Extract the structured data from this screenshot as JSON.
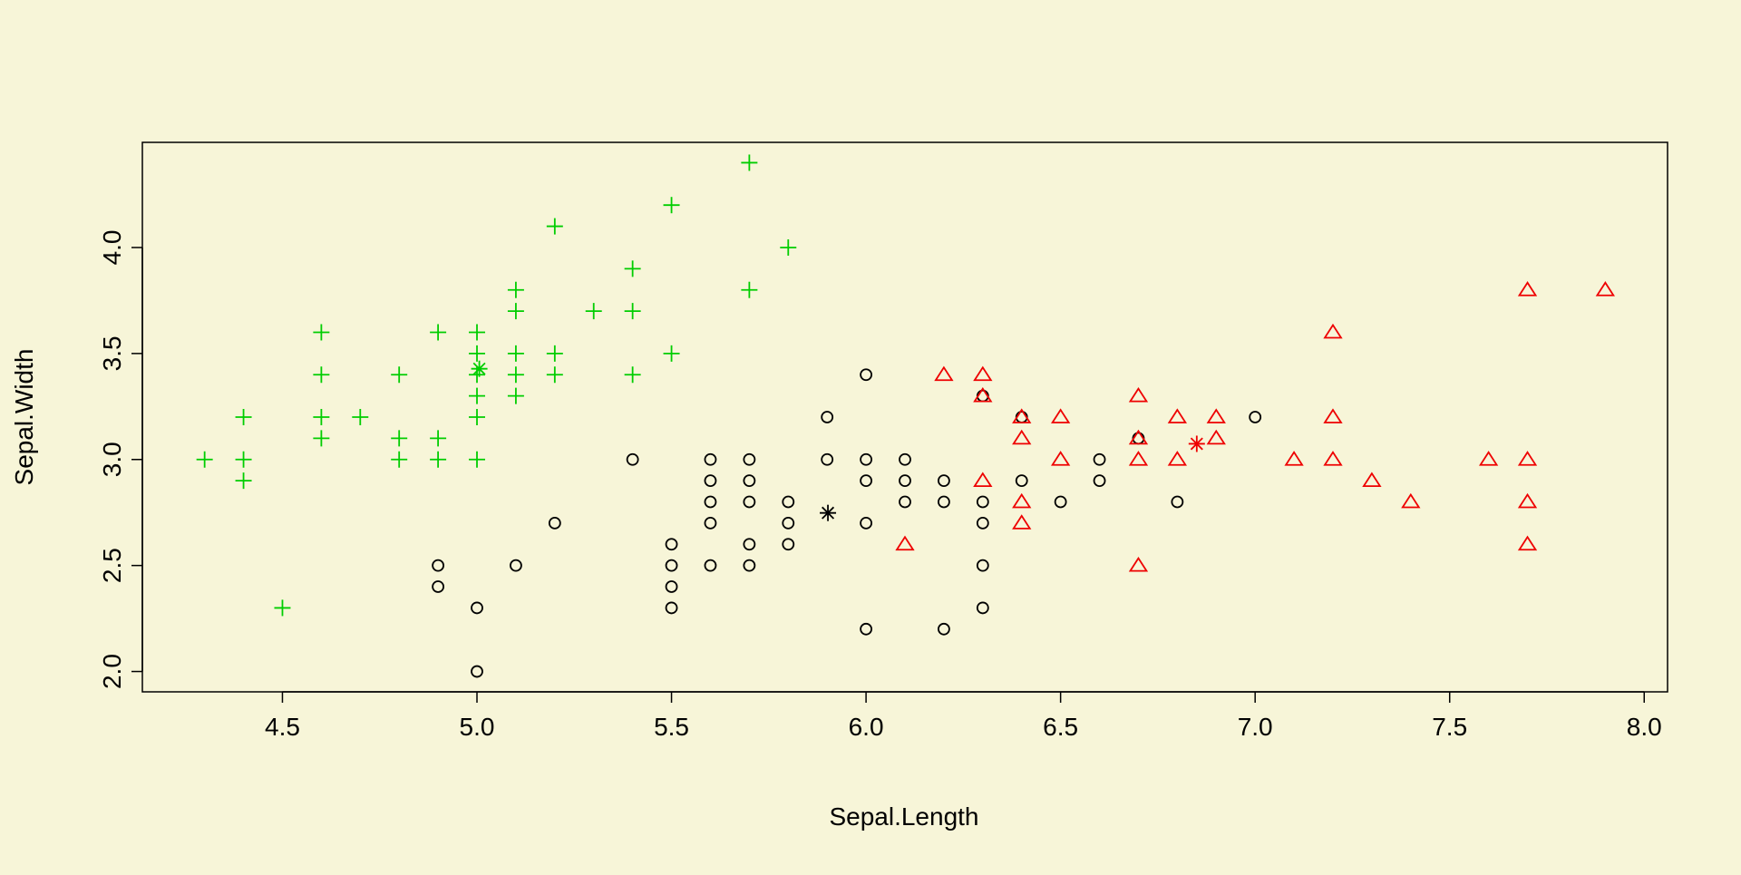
{
  "colors": {
    "background": "#f7f5d8",
    "axis": "#000000"
  },
  "chart_data": {
    "type": "scatter",
    "title": "",
    "xlabel": "Sepal.Length",
    "ylabel": "Sepal.Width",
    "xlim": [
      4.14,
      8.06
    ],
    "ylim": [
      1.904,
      4.496
    ],
    "x_ticks": [
      4.5,
      5.0,
      5.5,
      6.0,
      6.5,
      7.0,
      7.5,
      8.0
    ],
    "x_tick_labels": [
      "4.5",
      "5.0",
      "5.5",
      "6.0",
      "6.5",
      "7.0",
      "7.5",
      "8.0"
    ],
    "y_ticks": [
      2.0,
      2.5,
      3.0,
      3.5,
      4.0
    ],
    "y_tick_labels": [
      "2.0",
      "2.5",
      "3.0",
      "3.5",
      "4.0"
    ],
    "grid": false,
    "legend": "none",
    "series": [
      {
        "marker": "plus",
        "color": "#00cd00",
        "points": [
          [
            4.3,
            3.0
          ],
          [
            4.4,
            2.9
          ],
          [
            4.4,
            3.0
          ],
          [
            4.4,
            3.2
          ],
          [
            4.5,
            2.3
          ],
          [
            4.6,
            3.1
          ],
          [
            4.6,
            3.2
          ],
          [
            4.6,
            3.4
          ],
          [
            4.6,
            3.6
          ],
          [
            4.7,
            3.2
          ],
          [
            4.8,
            3.0
          ],
          [
            4.8,
            3.1
          ],
          [
            4.8,
            3.4
          ],
          [
            4.9,
            3.0
          ],
          [
            4.9,
            3.1
          ],
          [
            4.9,
            3.6
          ],
          [
            5.0,
            3.0
          ],
          [
            5.0,
            3.2
          ],
          [
            5.0,
            3.3
          ],
          [
            5.0,
            3.4
          ],
          [
            5.0,
            3.5
          ],
          [
            5.0,
            3.6
          ],
          [
            5.1,
            3.3
          ],
          [
            5.1,
            3.4
          ],
          [
            5.1,
            3.5
          ],
          [
            5.1,
            3.7
          ],
          [
            5.1,
            3.8
          ],
          [
            5.2,
            3.4
          ],
          [
            5.2,
            3.5
          ],
          [
            5.2,
            4.1
          ],
          [
            5.3,
            3.7
          ],
          [
            5.4,
            3.4
          ],
          [
            5.4,
            3.7
          ],
          [
            5.4,
            3.9
          ],
          [
            5.5,
            3.5
          ],
          [
            5.5,
            4.2
          ],
          [
            5.7,
            3.8
          ],
          [
            5.7,
            4.4
          ],
          [
            5.8,
            4.0
          ]
        ]
      },
      {
        "marker": "circle",
        "color": "#000000",
        "points": [
          [
            4.9,
            2.4
          ],
          [
            4.9,
            2.5
          ],
          [
            5.0,
            2.0
          ],
          [
            5.0,
            2.3
          ],
          [
            5.1,
            2.5
          ],
          [
            5.2,
            2.7
          ],
          [
            5.4,
            3.0
          ],
          [
            5.5,
            2.3
          ],
          [
            5.5,
            2.4
          ],
          [
            5.5,
            2.5
          ],
          [
            5.5,
            2.6
          ],
          [
            5.6,
            2.5
          ],
          [
            5.6,
            2.7
          ],
          [
            5.6,
            2.8
          ],
          [
            5.6,
            2.9
          ],
          [
            5.6,
            3.0
          ],
          [
            5.7,
            2.5
          ],
          [
            5.7,
            2.6
          ],
          [
            5.7,
            2.8
          ],
          [
            5.7,
            2.9
          ],
          [
            5.7,
            3.0
          ],
          [
            5.8,
            2.6
          ],
          [
            5.8,
            2.7
          ],
          [
            5.8,
            2.8
          ],
          [
            5.9,
            3.0
          ],
          [
            5.9,
            3.2
          ],
          [
            6.0,
            2.2
          ],
          [
            6.0,
            2.7
          ],
          [
            6.0,
            2.9
          ],
          [
            6.0,
            3.0
          ],
          [
            6.0,
            3.4
          ],
          [
            6.1,
            2.8
          ],
          [
            6.1,
            2.9
          ],
          [
            6.1,
            3.0
          ],
          [
            6.2,
            2.2
          ],
          [
            6.2,
            2.8
          ],
          [
            6.2,
            2.9
          ],
          [
            6.3,
            2.3
          ],
          [
            6.3,
            2.5
          ],
          [
            6.3,
            2.7
          ],
          [
            6.3,
            2.8
          ],
          [
            6.3,
            3.3
          ],
          [
            6.4,
            2.9
          ],
          [
            6.4,
            3.2
          ],
          [
            6.5,
            2.8
          ],
          [
            6.6,
            2.9
          ],
          [
            6.6,
            3.0
          ],
          [
            6.7,
            3.1
          ],
          [
            6.8,
            2.8
          ],
          [
            7.0,
            3.2
          ]
        ]
      },
      {
        "marker": "triangle",
        "color": "#ee0000",
        "points": [
          [
            6.1,
            2.6
          ],
          [
            6.2,
            3.4
          ],
          [
            6.3,
            2.9
          ],
          [
            6.3,
            3.3
          ],
          [
            6.3,
            3.4
          ],
          [
            6.4,
            2.7
          ],
          [
            6.4,
            2.8
          ],
          [
            6.4,
            3.1
          ],
          [
            6.4,
            3.2
          ],
          [
            6.5,
            3.0
          ],
          [
            6.5,
            3.2
          ],
          [
            6.7,
            2.5
          ],
          [
            6.7,
            3.0
          ],
          [
            6.7,
            3.1
          ],
          [
            6.7,
            3.3
          ],
          [
            6.8,
            3.0
          ],
          [
            6.8,
            3.2
          ],
          [
            6.9,
            3.1
          ],
          [
            6.9,
            3.2
          ],
          [
            7.1,
            3.0
          ],
          [
            7.2,
            3.0
          ],
          [
            7.2,
            3.2
          ],
          [
            7.2,
            3.6
          ],
          [
            7.3,
            2.9
          ],
          [
            7.4,
            2.8
          ],
          [
            7.6,
            3.0
          ],
          [
            7.7,
            2.6
          ],
          [
            7.7,
            2.8
          ],
          [
            7.7,
            3.0
          ],
          [
            7.7,
            3.8
          ],
          [
            7.9,
            3.8
          ]
        ]
      }
    ],
    "centers": [
      {
        "x": 5.006,
        "y": 3.428,
        "color": "#00cd00",
        "marker": "asterisk"
      },
      {
        "x": 5.902,
        "y": 2.748,
        "color": "#000000",
        "marker": "asterisk"
      },
      {
        "x": 6.85,
        "y": 3.074,
        "color": "#ee0000",
        "marker": "asterisk"
      }
    ]
  }
}
